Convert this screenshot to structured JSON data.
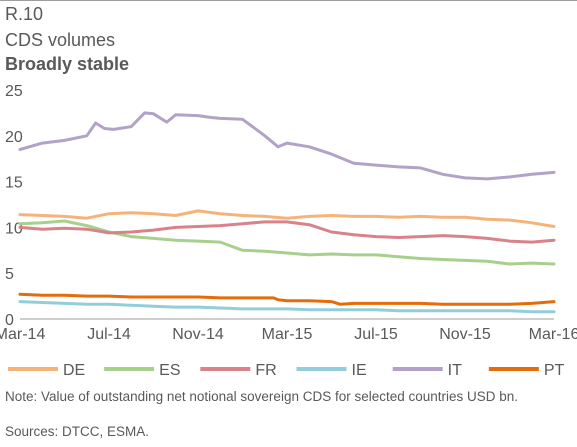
{
  "header": {
    "figure_label": "R.10",
    "title": "CDS volumes",
    "subtitle": "Broadly stable"
  },
  "footer": {
    "note": "Note: Value of outstanding net notional sovereign CDS for selected countries USD bn.",
    "sources": "Sources: DTCC, ESMA."
  },
  "chart_data": {
    "type": "line",
    "title": "CDS volumes",
    "subtitle": "Broadly stable",
    "xlabel": "",
    "ylabel": "",
    "ylim": [
      0,
      25
    ],
    "yticks": [
      0,
      5,
      10,
      15,
      20,
      25
    ],
    "x_tick_labels": [
      "Mar-14",
      "Jul-14",
      "Nov-14",
      "Mar-15",
      "Jul-15",
      "Nov-15",
      "Mar-16"
    ],
    "x_tick_positions": [
      0,
      4,
      8,
      12,
      16,
      20,
      24
    ],
    "x_unit": "months since Mar-14",
    "grid": false,
    "legend_position": "bottom",
    "series": [
      {
        "name": "DE",
        "color": "#f5b37a",
        "points": [
          [
            0,
            11.4
          ],
          [
            1,
            11.3
          ],
          [
            2,
            11.2
          ],
          [
            3,
            11.0
          ],
          [
            4,
            11.5
          ],
          [
            5,
            11.6
          ],
          [
            6,
            11.5
          ],
          [
            7,
            11.3
          ],
          [
            8,
            11.8
          ],
          [
            9,
            11.5
          ],
          [
            10,
            11.3
          ],
          [
            11,
            11.2
          ],
          [
            12,
            11.0
          ],
          [
            13,
            11.2
          ],
          [
            14,
            11.3
          ],
          [
            15,
            11.2
          ],
          [
            16,
            11.2
          ],
          [
            17,
            11.1
          ],
          [
            18,
            11.2
          ],
          [
            19,
            11.1
          ],
          [
            20,
            11.1
          ],
          [
            21,
            10.9
          ],
          [
            22,
            10.8
          ],
          [
            23,
            10.5
          ],
          [
            24,
            10.1
          ]
        ]
      },
      {
        "name": "ES",
        "color": "#a8d08d",
        "points": [
          [
            0,
            10.4
          ],
          [
            1,
            10.5
          ],
          [
            2,
            10.7
          ],
          [
            3,
            10.2
          ],
          [
            4,
            9.5
          ],
          [
            5,
            9.0
          ],
          [
            6,
            8.8
          ],
          [
            7,
            8.6
          ],
          [
            8,
            8.5
          ],
          [
            9,
            8.4
          ],
          [
            10,
            7.5
          ],
          [
            11,
            7.4
          ],
          [
            12,
            7.2
          ],
          [
            13,
            7.0
          ],
          [
            14,
            7.1
          ],
          [
            15,
            7.0
          ],
          [
            16,
            7.0
          ],
          [
            17,
            6.8
          ],
          [
            18,
            6.6
          ],
          [
            19,
            6.5
          ],
          [
            20,
            6.4
          ],
          [
            21,
            6.3
          ],
          [
            22,
            6.0
          ],
          [
            23,
            6.1
          ],
          [
            24,
            6.0
          ]
        ]
      },
      {
        "name": "FR",
        "color": "#d9828a",
        "points": [
          [
            0,
            10.0
          ],
          [
            1,
            9.8
          ],
          [
            2,
            9.9
          ],
          [
            3,
            9.8
          ],
          [
            4,
            9.4
          ],
          [
            5,
            9.5
          ],
          [
            6,
            9.7
          ],
          [
            7,
            10.0
          ],
          [
            8,
            10.1
          ],
          [
            9,
            10.2
          ],
          [
            10,
            10.4
          ],
          [
            11,
            10.6
          ],
          [
            12,
            10.6
          ],
          [
            13,
            10.3
          ],
          [
            14,
            9.5
          ],
          [
            15,
            9.2
          ],
          [
            16,
            9.0
          ],
          [
            17,
            8.9
          ],
          [
            18,
            9.0
          ],
          [
            19,
            9.1
          ],
          [
            20,
            9.0
          ],
          [
            21,
            8.8
          ],
          [
            22,
            8.5
          ],
          [
            23,
            8.4
          ],
          [
            24,
            8.6
          ]
        ]
      },
      {
        "name": "IE",
        "color": "#92cddc",
        "points": [
          [
            0,
            1.9
          ],
          [
            1,
            1.8
          ],
          [
            2,
            1.7
          ],
          [
            3,
            1.6
          ],
          [
            4,
            1.6
          ],
          [
            5,
            1.5
          ],
          [
            6,
            1.4
          ],
          [
            7,
            1.3
          ],
          [
            8,
            1.3
          ],
          [
            9,
            1.2
          ],
          [
            10,
            1.1
          ],
          [
            11,
            1.1
          ],
          [
            12,
            1.1
          ],
          [
            13,
            1.0
          ],
          [
            14,
            1.0
          ],
          [
            15,
            1.0
          ],
          [
            16,
            1.0
          ],
          [
            17,
            0.9
          ],
          [
            18,
            0.9
          ],
          [
            19,
            0.9
          ],
          [
            20,
            0.9
          ],
          [
            21,
            0.9
          ],
          [
            22,
            0.9
          ],
          [
            23,
            0.8
          ],
          [
            24,
            0.8
          ]
        ]
      },
      {
        "name": "IT",
        "color": "#b3a2c7",
        "points": [
          [
            0,
            18.5
          ],
          [
            1,
            19.2
          ],
          [
            2,
            19.5
          ],
          [
            3,
            20.0
          ],
          [
            3.4,
            21.4
          ],
          [
            3.8,
            20.8
          ],
          [
            4.2,
            20.7
          ],
          [
            5,
            21.0
          ],
          [
            5.6,
            22.5
          ],
          [
            6,
            22.4
          ],
          [
            6.6,
            21.5
          ],
          [
            7,
            22.3
          ],
          [
            8,
            22.2
          ],
          [
            8.6,
            22.0
          ],
          [
            9,
            21.9
          ],
          [
            10,
            21.8
          ],
          [
            11,
            20.0
          ],
          [
            11.6,
            18.8
          ],
          [
            12,
            19.2
          ],
          [
            13,
            18.8
          ],
          [
            14,
            18.0
          ],
          [
            15,
            17.0
          ],
          [
            16,
            16.8
          ],
          [
            17,
            16.6
          ],
          [
            18,
            16.5
          ],
          [
            19,
            15.8
          ],
          [
            20,
            15.4
          ],
          [
            21,
            15.3
          ],
          [
            22,
            15.5
          ],
          [
            23,
            15.8
          ],
          [
            24,
            16.0
          ]
        ]
      },
      {
        "name": "PT",
        "color": "#e46c0a",
        "points": [
          [
            0,
            2.7
          ],
          [
            1,
            2.6
          ],
          [
            2,
            2.6
          ],
          [
            3,
            2.5
          ],
          [
            4,
            2.5
          ],
          [
            5,
            2.4
          ],
          [
            6,
            2.4
          ],
          [
            7,
            2.4
          ],
          [
            8,
            2.4
          ],
          [
            9,
            2.3
          ],
          [
            10,
            2.3
          ],
          [
            11,
            2.3
          ],
          [
            11.4,
            2.3
          ],
          [
            11.6,
            2.1
          ],
          [
            12,
            2.0
          ],
          [
            13,
            2.0
          ],
          [
            14,
            1.9
          ],
          [
            14.4,
            1.6
          ],
          [
            15,
            1.7
          ],
          [
            16,
            1.7
          ],
          [
            17,
            1.7
          ],
          [
            18,
            1.7
          ],
          [
            19,
            1.6
          ],
          [
            20,
            1.6
          ],
          [
            21,
            1.6
          ],
          [
            22,
            1.6
          ],
          [
            23,
            1.7
          ],
          [
            24,
            1.9
          ]
        ]
      }
    ]
  }
}
